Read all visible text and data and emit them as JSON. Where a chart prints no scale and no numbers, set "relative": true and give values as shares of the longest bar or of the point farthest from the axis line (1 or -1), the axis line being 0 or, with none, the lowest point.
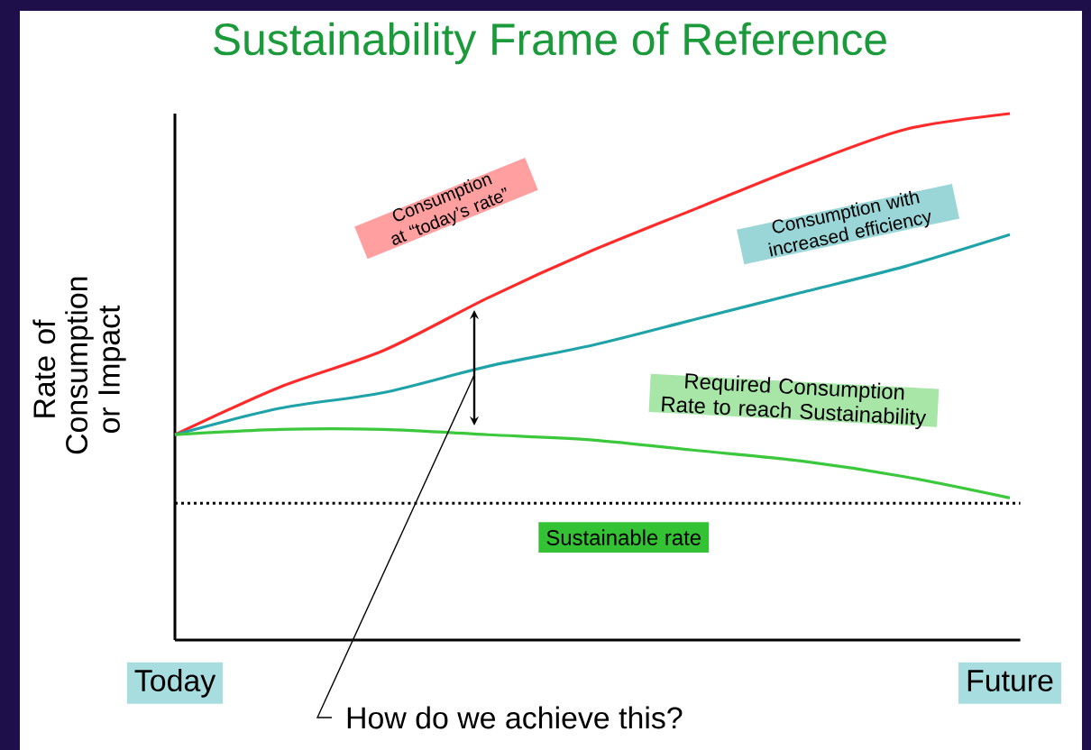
{
  "chart_data": {
    "type": "line",
    "title": "Sustainability Frame of Reference",
    "ylabel": "Rate of Consumption or Impact",
    "relative": true,
    "categories": [
      "Today",
      null,
      null,
      null,
      null,
      null,
      null,
      null,
      "Future"
    ],
    "series": [
      {
        "name": "Consumption at “today’s rate”",
        "color": "#ff2a2a",
        "values": [
          0.39,
          0.48,
          0.55,
          0.65,
          0.74,
          0.82,
          0.9,
          0.97,
          1.0
        ]
      },
      {
        "name": "Consumption with increased efficiency",
        "color": "#1fa3a8",
        "values": [
          0.39,
          0.44,
          0.47,
          0.52,
          0.56,
          0.61,
          0.66,
          0.71,
          0.77
        ]
      },
      {
        "name": "Required Consumption Rate to reach Sustainability",
        "color": "#3cc83c",
        "values": [
          0.39,
          0.4,
          0.4,
          0.39,
          0.38,
          0.36,
          0.34,
          0.31,
          0.27
        ]
      }
    ],
    "ref_lines": [
      {
        "axis": "y",
        "value": 0.26,
        "label": "Sustainable rate",
        "color": "#000000",
        "line_style": "dotted"
      }
    ],
    "annotations": [
      "How do we achieve this?"
    ]
  }
}
